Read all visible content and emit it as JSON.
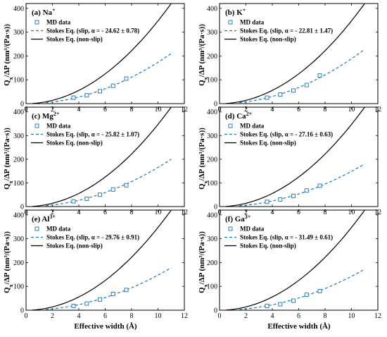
{
  "figure": {
    "ylabel": "Q",
    "ylabel_sub": "x",
    "ylabel_rest": "/ΔP (nm³/(Pa·s))",
    "xlabel": "Effective width (Å)"
  },
  "chart_data": [
    {
      "type": "scatter",
      "label_prefix": "(a) Na",
      "label_sup": "+",
      "x_ticks": [
        "0",
        "2",
        "4",
        "6",
        "8",
        "10",
        "12"
      ],
      "y_ticks": [
        "0",
        "100",
        "200",
        "300",
        "400"
      ],
      "xlim": [
        0,
        12
      ],
      "ylim": [
        0,
        420
      ],
      "legend": [
        "MD data",
        "Stokes Eq. (slip, α = - 24.62 ± 0.78)",
        "Stokes Eq. (non-slip)"
      ],
      "md_data": {
        "x": [
          3.6,
          4.6,
          5.6,
          6.6,
          7.6
        ],
        "y": [
          25,
          35,
          52,
          75,
          105
        ]
      },
      "slip_curve": {
        "x_start": 1.5,
        "x_end": 11,
        "y_end": 210
      },
      "nonslip_curve": {
        "x_start": 0.5,
        "x_end": 11,
        "y_end": 420
      }
    },
    {
      "type": "scatter",
      "label_prefix": "(b) K",
      "label_sup": "+",
      "x_ticks": [
        "0",
        "2",
        "4",
        "6",
        "8",
        "10",
        "12"
      ],
      "y_ticks": [
        "0",
        "100",
        "200",
        "300",
        "400"
      ],
      "xlim": [
        0,
        12
      ],
      "ylim": [
        0,
        420
      ],
      "legend": [
        "MD data",
        "Stokes Eq. (slip, α = - 22.81 ± 1.47)",
        "Stokes Eq. (non-slip)"
      ],
      "md_data": {
        "x": [
          3.6,
          4.6,
          5.6,
          6.6,
          7.6
        ],
        "y": [
          25,
          38,
          55,
          78,
          118
        ]
      },
      "slip_curve": {
        "x_start": 1.5,
        "x_end": 11,
        "y_end": 228
      },
      "nonslip_curve": {
        "x_start": 0.5,
        "x_end": 11,
        "y_end": 420
      }
    },
    {
      "type": "scatter",
      "label_prefix": "(c) Mg",
      "label_sup": "2+",
      "x_ticks": [
        "0",
        "2",
        "4",
        "6",
        "8",
        "10",
        "12"
      ],
      "y_ticks": [
        "0",
        "100",
        "200",
        "300",
        "400"
      ],
      "xlim": [
        0,
        12
      ],
      "ylim": [
        0,
        420
      ],
      "legend": [
        "MD data",
        "Stokes Eq. (slip, α = - 25.82 ± 1.07)",
        "Stokes Eq. (non-slip)"
      ],
      "md_data": {
        "x": [
          3.6,
          4.6,
          5.6,
          6.6,
          7.6
        ],
        "y": [
          22,
          33,
          50,
          72,
          90
        ]
      },
      "slip_curve": {
        "x_start": 1.5,
        "x_end": 11,
        "y_end": 200
      },
      "nonslip_curve": {
        "x_start": 0.5,
        "x_end": 11,
        "y_end": 420
      }
    },
    {
      "type": "scatter",
      "label_prefix": "(d) Ca",
      "label_sup": "2+",
      "x_ticks": [
        "0",
        "2",
        "4",
        "6",
        "8",
        "10",
        "12"
      ],
      "y_ticks": [
        "0",
        "100",
        "200",
        "300",
        "400"
      ],
      "xlim": [
        0,
        12
      ],
      "ylim": [
        0,
        420
      ],
      "legend": [
        "MD data",
        "Stokes Eq. (slip, α = - 27.16 ± 0.63)",
        "Stokes Eq. (non-slip)"
      ],
      "md_data": {
        "x": [
          3.6,
          4.6,
          5.6,
          6.6,
          7.6
        ],
        "y": [
          20,
          30,
          45,
          68,
          88
        ]
      },
      "slip_curve": {
        "x_start": 1.5,
        "x_end": 11,
        "y_end": 180
      },
      "nonslip_curve": {
        "x_start": 0.5,
        "x_end": 11,
        "y_end": 420
      }
    },
    {
      "type": "scatter",
      "label_prefix": "(e) Al",
      "label_sup": "3+",
      "x_ticks": [
        "0",
        "2",
        "4",
        "6",
        "8",
        "10",
        "12"
      ],
      "y_ticks": [
        "0",
        "100",
        "200",
        "300",
        "400"
      ],
      "xlim": [
        0,
        12
      ],
      "ylim": [
        0,
        420
      ],
      "legend": [
        "MD data",
        "Stokes Eq. (slip, α = - 29.76 ± 0.91)",
        "Stokes Eq. (non-slip)"
      ],
      "md_data": {
        "x": [
          3.6,
          4.6,
          5.6,
          6.6,
          7.6
        ],
        "y": [
          18,
          28,
          45,
          68,
          85
        ]
      },
      "slip_curve": {
        "x_start": 1.5,
        "x_end": 11,
        "y_end": 178
      },
      "nonslip_curve": {
        "x_start": 0.5,
        "x_end": 11,
        "y_end": 420
      }
    },
    {
      "type": "scatter",
      "label_prefix": "(f) Ga",
      "label_sup": "3+",
      "x_ticks": [
        "0",
        "2",
        "4",
        "6",
        "8",
        "10",
        "12"
      ],
      "y_ticks": [
        "0",
        "100",
        "200",
        "300",
        "400"
      ],
      "xlim": [
        0,
        12
      ],
      "ylim": [
        0,
        420
      ],
      "legend": [
        "MD data",
        "Stokes Eq. (slip, α = - 31.49 ± 0.61)",
        "Stokes Eq. (non-slip)"
      ],
      "md_data": {
        "x": [
          3.6,
          4.6,
          5.6,
          6.6,
          7.6
        ],
        "y": [
          18,
          25,
          40,
          65,
          80
        ]
      },
      "slip_curve": {
        "x_start": 1.5,
        "x_end": 11,
        "y_end": 172
      },
      "nonslip_curve": {
        "x_start": 0.5,
        "x_end": 11,
        "y_end": 420
      }
    }
  ],
  "colors": {
    "slip": "#1f77b4",
    "md_marker": "#2a7fc4",
    "nonslip": "#000000"
  }
}
